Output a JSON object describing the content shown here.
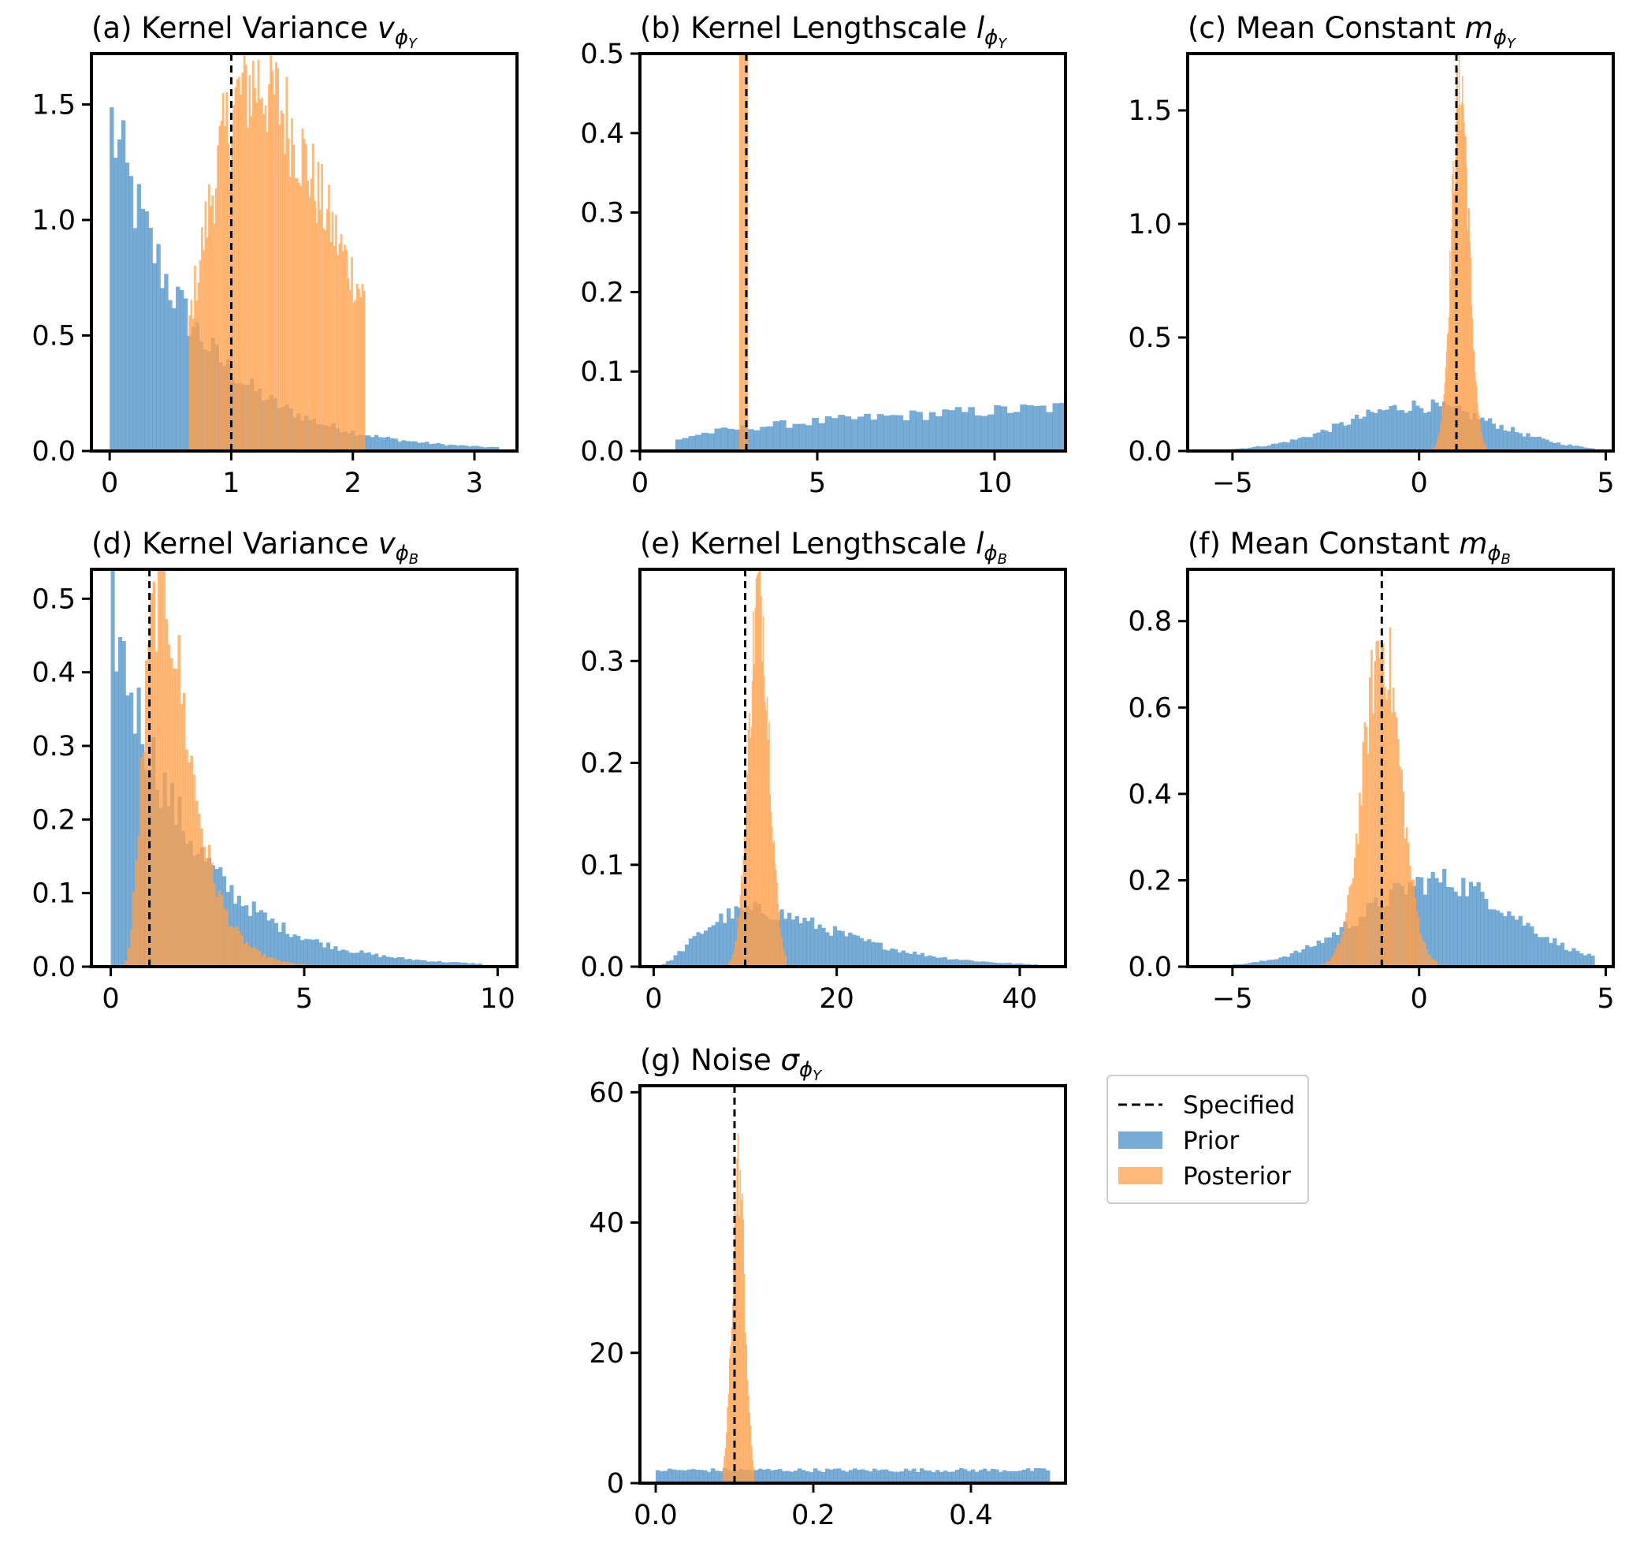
{
  "colors": {
    "prior": "#4a90c8",
    "posterior": "#ffa04a",
    "specified": "#000000",
    "frame": "#000000"
  },
  "legend": {
    "location": "right of panel (g)",
    "entries": [
      "Specified",
      "Prior",
      "Posterior"
    ]
  },
  "chart_data": [
    {
      "id": "a",
      "type": "histogram",
      "title_prefix": "(a) Kernel Variance",
      "symbol": "v",
      "subscript": "ϕ",
      "subsub": "Y",
      "xlim": [
        -0.15,
        3.35
      ],
      "ylim": [
        0,
        1.72
      ],
      "xticks": [
        0,
        1,
        2,
        3
      ],
      "xtick_labels": [
        "0",
        "1",
        "2",
        "3"
      ],
      "yticks": [
        0,
        0.5,
        1.0,
        1.5
      ],
      "ytick_labels": [
        "0.0",
        "0.5",
        "1.0",
        "1.5"
      ],
      "specified": 1.0,
      "prior": {
        "distribution": "exponential",
        "range": [
          0,
          3.2
        ],
        "bins": 100,
        "peak_density": 1.45,
        "scale": 0.7
      },
      "posterior": {
        "distribution": "lognormal",
        "range": [
          0.65,
          2.1
        ],
        "bins": 100,
        "peak_density": 1.6,
        "mode": 1.2
      }
    },
    {
      "id": "b",
      "type": "histogram",
      "title_prefix": "(b) Kernel Lengthscale",
      "symbol": "l",
      "subscript": "ϕ",
      "subsub": "Y",
      "xlim": [
        0,
        12
      ],
      "ylim": [
        0,
        0.5
      ],
      "xticks": [
        0,
        5,
        10
      ],
      "xtick_labels": [
        "0",
        "5",
        "10"
      ],
      "yticks": [
        0,
        0.1,
        0.2,
        0.3,
        0.4,
        0.5
      ],
      "ytick_labels": [
        "0.0",
        "0.1",
        "0.2",
        "0.3",
        "0.4",
        "0.5"
      ],
      "specified": 3.0,
      "prior": {
        "distribution": "rising-uniform",
        "range": [
          1.0,
          12
        ],
        "bins": 60,
        "density_at_start": 0.01,
        "density_at_end": 0.055
      },
      "posterior": {
        "distribution": "narrow",
        "range": [
          2.8,
          3.05
        ],
        "peak_density": "off-scale (> 0.5)"
      }
    },
    {
      "id": "c",
      "type": "histogram",
      "title_prefix": "(c) Mean Constant",
      "symbol": "m",
      "subscript": "ϕ",
      "subsub": "Y",
      "xlim": [
        -6.2,
        5.2
      ],
      "ylim": [
        0,
        1.75
      ],
      "xticks": [
        -5,
        0,
        5
      ],
      "xtick_labels": [
        "−5",
        "0",
        "5"
      ],
      "yticks": [
        0,
        0.5,
        1.0,
        1.5
      ],
      "ytick_labels": [
        "0.0",
        "0.5",
        "1.0",
        "1.5"
      ],
      "specified": 1.0,
      "prior": {
        "distribution": "normal",
        "range": [
          -5.5,
          4.7
        ],
        "bins": 100,
        "peak_density": 0.2,
        "mean": 0,
        "sd": 2
      },
      "posterior": {
        "distribution": "normal",
        "range": [
          0,
          1.8
        ],
        "bins": 80,
        "peak_density": 1.63,
        "mean": 1.1,
        "sd": 0.23
      }
    },
    {
      "id": "d",
      "type": "histogram",
      "title_prefix": "(d) Kernel Variance",
      "symbol": "v",
      "subscript": "ϕ",
      "subsub": "B",
      "xlim": [
        -0.5,
        10.5
      ],
      "ylim": [
        0,
        0.54
      ],
      "xticks": [
        0,
        5,
        10
      ],
      "xtick_labels": [
        "0",
        "5",
        "10"
      ],
      "yticks": [
        0,
        0.1,
        0.2,
        0.3,
        0.4,
        0.5
      ],
      "ytick_labels": [
        "0.0",
        "0.1",
        "0.2",
        "0.3",
        "0.4",
        "0.5"
      ],
      "specified": 1.0,
      "prior": {
        "distribution": "exponential",
        "range": [
          0,
          9.6
        ],
        "bins": 100,
        "peak_density": 0.49,
        "scale": 2.0
      },
      "posterior": {
        "distribution": "lognormal",
        "range": [
          0.3,
          6.8
        ],
        "bins": 100,
        "peak_density": 0.52,
        "mode": 1.3
      }
    },
    {
      "id": "e",
      "type": "histogram",
      "title_prefix": "(e) Kernel Lengthscale",
      "symbol": "l",
      "subscript": "ϕ",
      "subsub": "B",
      "xlim": [
        -1.5,
        45
      ],
      "ylim": [
        0,
        0.39
      ],
      "xticks": [
        0,
        20,
        40
      ],
      "xtick_labels": [
        "0",
        "20",
        "40"
      ],
      "yticks": [
        0,
        0.1,
        0.2,
        0.3
      ],
      "ytick_labels": [
        "0.0",
        "0.1",
        "0.2",
        "0.3"
      ],
      "specified": 10.0,
      "prior": {
        "distribution": "gamma",
        "range": [
          0.5,
          42
        ],
        "bins": 100,
        "peak_density": 0.055,
        "mode": 11
      },
      "posterior": {
        "distribution": "normal",
        "range": [
          8,
          14.5
        ],
        "bins": 60,
        "peak_density": 0.37,
        "mean": 11.5,
        "sd": 1.1
      }
    },
    {
      "id": "f",
      "type": "histogram",
      "title_prefix": "(f) Mean Constant",
      "symbol": "m",
      "subscript": "ϕ",
      "subsub": "B",
      "xlim": [
        -6.2,
        5.2
      ],
      "ylim": [
        0,
        0.92
      ],
      "xticks": [
        -5,
        0,
        5
      ],
      "xtick_labels": [
        "−5",
        "0",
        "5"
      ],
      "yticks": [
        0,
        0.2,
        0.4,
        0.6,
        0.8
      ],
      "ytick_labels": [
        "0.0",
        "0.2",
        "0.4",
        "0.6",
        "0.8"
      ],
      "specified": -1.0,
      "prior": {
        "distribution": "normal",
        "range": [
          -5.5,
          4.7
        ],
        "bins": 100,
        "peak_density": 0.2,
        "mean": 0.5,
        "sd": 2
      },
      "posterior": {
        "distribution": "normal",
        "range": [
          -3.1,
          0.5
        ],
        "bins": 80,
        "peak_density": 0.75,
        "mean": -1.0,
        "sd": 0.5
      }
    },
    {
      "id": "g",
      "type": "histogram",
      "title_prefix": "(g) Noise",
      "symbol": "σ",
      "subscript": "ϕ",
      "subsub": "Y",
      "xlim": [
        -0.02,
        0.52
      ],
      "ylim": [
        0,
        61
      ],
      "xticks": [
        0,
        0.2,
        0.4
      ],
      "xtick_labels": [
        "0.0",
        "0.2",
        "0.4"
      ],
      "yticks": [
        0,
        20,
        40,
        60
      ],
      "ytick_labels": [
        "0",
        "20",
        "40",
        "60"
      ],
      "specified": 0.1,
      "prior": {
        "distribution": "uniform",
        "range": [
          0,
          0.5
        ],
        "bins": 100,
        "peak_density": 2
      },
      "posterior": {
        "distribution": "normal",
        "range": [
          0.085,
          0.125
        ],
        "bins": 30,
        "peak_density": 48,
        "mean": 0.105,
        "sd": 0.008
      }
    }
  ]
}
